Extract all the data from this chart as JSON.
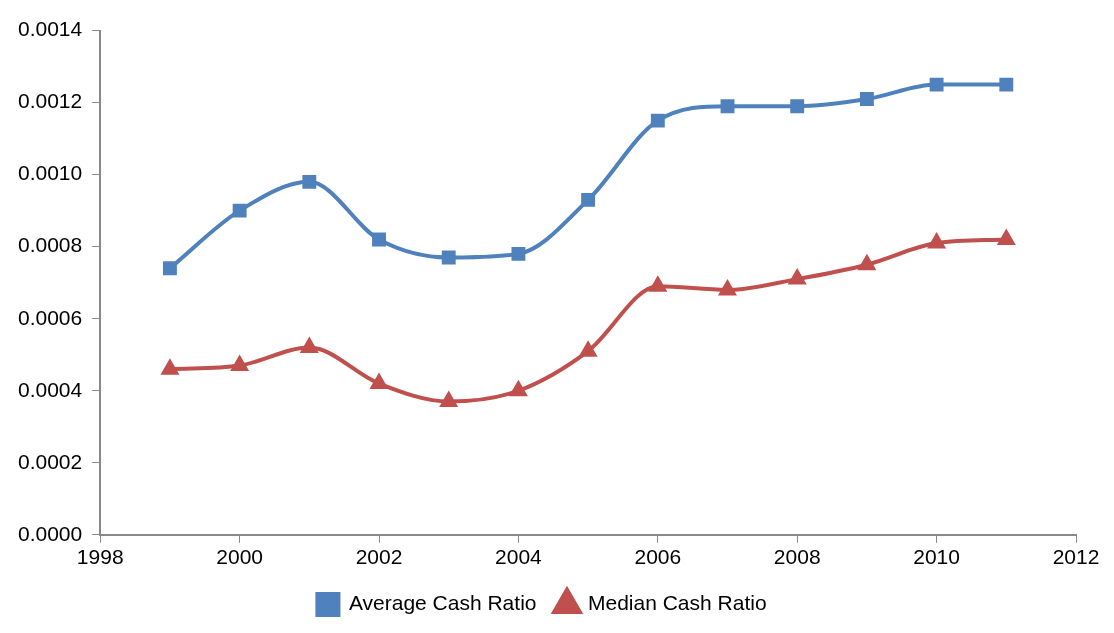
{
  "chart_data": {
    "type": "line",
    "x": [
      1999,
      2000,
      2001,
      2002,
      2003,
      2004,
      2005,
      2006,
      2007,
      2008,
      2009,
      2010,
      2011
    ],
    "series": [
      {
        "name": "Average Cash Ratio",
        "color": "#4f81bd",
        "marker": "square",
        "values": [
          0.00074,
          0.0009,
          0.00098,
          0.00082,
          0.00077,
          0.00078,
          0.00093,
          0.00115,
          0.00119,
          0.00119,
          0.00121,
          0.00125,
          0.00125
        ]
      },
      {
        "name": "Median Cash Ratio",
        "color": "#c0504d",
        "marker": "triangle",
        "values": [
          0.00046,
          0.00047,
          0.00052,
          0.00042,
          0.00037,
          0.0004,
          0.00051,
          0.00069,
          0.00068,
          0.00071,
          0.00075,
          0.00081,
          0.00082
        ]
      }
    ],
    "xlim": [
      1998,
      2012
    ],
    "xticks": [
      1998,
      2000,
      2002,
      2004,
      2006,
      2008,
      2010,
      2012
    ],
    "ylim": [
      0,
      0.0014
    ],
    "yticks": [
      {
        "value": 0,
        "label": "0.0000"
      },
      {
        "value": 0.0002,
        "label": "0.0002"
      },
      {
        "value": 0.0004,
        "label": "0.0004"
      },
      {
        "value": 0.0006,
        "label": "0.0006"
      },
      {
        "value": 0.0008,
        "label": "0.0008"
      },
      {
        "value": 0.001,
        "label": "0.0010"
      },
      {
        "value": 0.0012,
        "label": "0.0012"
      },
      {
        "value": 0.0014,
        "label": "0.0014"
      }
    ],
    "grid": false,
    "legend": "bottom"
  }
}
